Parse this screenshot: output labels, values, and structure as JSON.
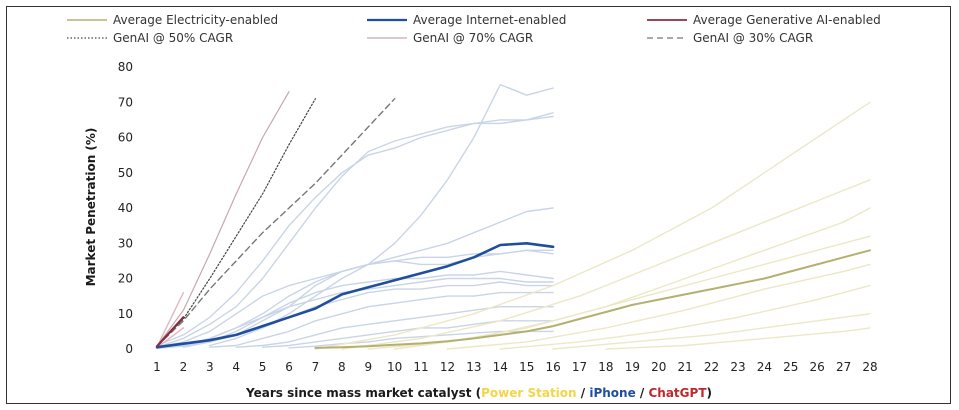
{
  "chart_data": {
    "type": "line",
    "xlabel_parts": [
      {
        "text": "Years since mass market catalyst (",
        "color": "#1a1a1a"
      },
      {
        "text": "Power Station",
        "color": "#f5d547"
      },
      {
        "text": " / ",
        "color": "#1a1a1a"
      },
      {
        "text": "iPhone",
        "color": "#1f4e9e"
      },
      {
        "text": " / ",
        "color": "#1a1a1a"
      },
      {
        "text": "ChatGPT",
        "color": "#c0282d"
      },
      {
        "text": ")",
        "color": "#1a1a1a"
      }
    ],
    "ylabel": "Market Penetration (%)",
    "xlim": [
      1,
      28
    ],
    "ylim": [
      0,
      80
    ],
    "xticks": [
      1,
      2,
      3,
      4,
      5,
      6,
      7,
      8,
      9,
      10,
      11,
      12,
      13,
      14,
      15,
      16,
      17,
      18,
      19,
      20,
      21,
      22,
      23,
      24,
      25,
      26,
      27,
      28
    ],
    "yticks": [
      0,
      10,
      20,
      30,
      40,
      50,
      60,
      70,
      80
    ],
    "grid": false,
    "legend_position": "top",
    "series": [
      {
        "name": "Average Electricity-enabled",
        "color": "#b5b070",
        "width": 2,
        "dash": "",
        "x": [
          7,
          8,
          9,
          10,
          11,
          12,
          13,
          14,
          15,
          16,
          17,
          18,
          19,
          20,
          21,
          22,
          23,
          24,
          25,
          26,
          27,
          28
        ],
        "y": [
          0.3,
          0.5,
          0.8,
          1.2,
          1.6,
          2.2,
          3,
          4,
          5,
          6.5,
          8.5,
          10.5,
          12.5,
          14,
          15.5,
          17,
          18.5,
          20,
          22,
          24,
          26,
          28
        ]
      },
      {
        "name": "Average Internet-enabled",
        "color": "#1f4e9e",
        "width": 2.6,
        "dash": "",
        "x": [
          1,
          2,
          3,
          4,
          5,
          6,
          7,
          8,
          9,
          10,
          11,
          12,
          13,
          14,
          15,
          16
        ],
        "y": [
          0.5,
          1.5,
          2.5,
          4,
          6.5,
          9,
          11.5,
          15.5,
          17.5,
          19.5,
          21.5,
          23.5,
          26,
          29.5,
          30,
          29
        ]
      },
      {
        "name": "Average Generative AI-enabled",
        "color": "#8a2e3e",
        "width": 2.2,
        "dash": "",
        "x": [
          1,
          2
        ],
        "y": [
          0.8,
          9
        ]
      },
      {
        "name": "GenAI @ 50% CAGR",
        "color": "#444444",
        "width": 1.2,
        "dash": "1.5,2",
        "x": [
          1,
          2,
          3,
          4,
          5,
          6,
          7
        ],
        "y": [
          0.8,
          8.5,
          20,
          32,
          44,
          58,
          71
        ]
      },
      {
        "name": "GenAI @ 70% CAGR",
        "color": "#c7a6b0",
        "width": 1.2,
        "dash": "",
        "x": [
          1,
          2,
          3,
          4,
          5,
          6
        ],
        "y": [
          0.8,
          11,
          27,
          44,
          60,
          73
        ]
      },
      {
        "name": "GenAI @ 30% CAGR",
        "color": "#777777",
        "width": 1.4,
        "dash": "6,4",
        "x": [
          1,
          2,
          3,
          4,
          5,
          6,
          7,
          8,
          9,
          10
        ],
        "y": [
          0.8,
          8,
          17,
          25,
          33,
          40,
          47,
          55,
          63,
          71
        ]
      }
    ],
    "background_series": [
      {
        "group": "Internet-enabled",
        "color": "#c9d5e6",
        "x": [
          1,
          2,
          3,
          4,
          5,
          6,
          7,
          8,
          9,
          10,
          11,
          12,
          13,
          14,
          15,
          16
        ],
        "y": [
          1,
          4,
          9,
          16,
          25,
          35,
          43,
          50,
          55,
          57,
          60,
          62,
          64,
          65,
          65,
          66
        ]
      },
      {
        "group": "Internet-enabled",
        "color": "#c9d5e6",
        "x": [
          1,
          2,
          3,
          4,
          5,
          6,
          7,
          8,
          9,
          10,
          11,
          12,
          13,
          14,
          15,
          16
        ],
        "y": [
          0.5,
          3,
          7,
          12,
          20,
          30,
          40,
          49,
          56,
          59,
          61,
          63,
          64,
          64,
          65,
          67
        ]
      },
      {
        "group": "Internet-enabled",
        "color": "#c9d5e6",
        "x": [
          3,
          4,
          5,
          6,
          7,
          8,
          9,
          10,
          11,
          12,
          13,
          14,
          15,
          16
        ],
        "y": [
          1,
          3,
          6,
          10,
          15,
          20,
          24,
          30,
          38,
          48,
          60,
          75,
          72,
          74
        ]
      },
      {
        "group": "Internet-enabled",
        "color": "#c9d5e6",
        "x": [
          1,
          2,
          3,
          4,
          5,
          6,
          7,
          8,
          9,
          10,
          11,
          12,
          13,
          14,
          15,
          16
        ],
        "y": [
          0.5,
          2,
          5,
          10,
          15,
          18,
          20,
          22,
          24,
          26,
          28,
          30,
          33,
          36,
          39,
          40
        ]
      },
      {
        "group": "Internet-enabled",
        "color": "#c9d5e6",
        "x": [
          1,
          2,
          3,
          4,
          5,
          6,
          7,
          8,
          9,
          10,
          11,
          12,
          13,
          14,
          15,
          16
        ],
        "y": [
          0.3,
          1,
          3,
          6,
          10,
          15,
          19,
          22,
          24,
          25,
          26,
          26,
          27,
          27,
          28,
          28
        ]
      },
      {
        "group": "Internet-enabled",
        "color": "#c9d5e6",
        "x": [
          1,
          2,
          3,
          4,
          5,
          6,
          7,
          8,
          9,
          10,
          11,
          12,
          13,
          14,
          15,
          16
        ],
        "y": [
          0.2,
          1,
          2,
          4,
          8,
          12,
          18,
          22,
          24,
          25,
          24,
          24,
          26,
          27,
          28,
          27
        ]
      },
      {
        "group": "Internet-enabled",
        "color": "#c9d5e6",
        "x": [
          2,
          3,
          4,
          5,
          6,
          7,
          8,
          9,
          10,
          11,
          12,
          13,
          14,
          15,
          16
        ],
        "y": [
          0.5,
          2,
          5,
          9,
          13,
          16,
          18,
          19,
          20,
          20,
          21,
          21,
          22,
          21,
          20
        ]
      },
      {
        "group": "Internet-enabled",
        "color": "#c9d5e6",
        "x": [
          1,
          2,
          3,
          4,
          5,
          6,
          7,
          8,
          9,
          10,
          11,
          12,
          13,
          14,
          15,
          16
        ],
        "y": [
          0.2,
          1,
          3,
          6,
          9,
          12,
          14,
          16,
          17,
          18,
          19,
          20,
          20,
          20,
          19,
          19
        ]
      },
      {
        "group": "Internet-enabled",
        "color": "#c9d5e6",
        "x": [
          1,
          2,
          3,
          4,
          5,
          6,
          7,
          8,
          9,
          10,
          11,
          12,
          13,
          14,
          15,
          16
        ],
        "y": [
          0.2,
          0.8,
          2,
          4,
          6,
          9,
          12,
          14,
          16,
          17,
          17,
          18,
          18,
          19,
          18,
          18
        ]
      },
      {
        "group": "Internet-enabled",
        "color": "#c9d5e6",
        "x": [
          3,
          4,
          5,
          6,
          7,
          8,
          9,
          10,
          11,
          12,
          13,
          14,
          15,
          16
        ],
        "y": [
          0.5,
          1,
          3,
          5,
          8,
          10,
          12,
          13,
          14,
          15,
          15,
          16,
          16,
          16
        ]
      },
      {
        "group": "Internet-enabled",
        "color": "#c9d5e6",
        "x": [
          4,
          5,
          6,
          7,
          8,
          9,
          10,
          11,
          12,
          13,
          14,
          15,
          16
        ],
        "y": [
          0.5,
          1,
          2,
          4,
          6,
          7,
          8,
          9,
          10,
          11,
          12,
          12,
          12
        ]
      },
      {
        "group": "Internet-enabled",
        "color": "#c9d5e6",
        "x": [
          5,
          6,
          7,
          8,
          9,
          10,
          11,
          12,
          13,
          14,
          15,
          16
        ],
        "y": [
          0.5,
          1,
          2,
          3,
          4,
          5,
          6,
          6,
          7,
          8,
          8,
          8
        ]
      },
      {
        "group": "Internet-enabled",
        "color": "#c9d5e6",
        "x": [
          6,
          7,
          8,
          9,
          10,
          11,
          12,
          13,
          14,
          15,
          16
        ],
        "y": [
          0.3,
          0.8,
          1.5,
          2,
          3,
          3.5,
          4,
          4.5,
          5,
          5,
          5
        ]
      },
      {
        "group": "Electricity-enabled",
        "color": "#ece8c6",
        "x": [
          7,
          10,
          13,
          16,
          19,
          22,
          25,
          28
        ],
        "y": [
          0,
          4,
          10,
          18,
          28,
          40,
          55,
          70
        ]
      },
      {
        "group": "Electricity-enabled",
        "color": "#ece8c6",
        "x": [
          8,
          11,
          14,
          17,
          20,
          23,
          26,
          28
        ],
        "y": [
          0,
          3,
          8,
          15,
          24,
          33,
          42,
          48
        ]
      },
      {
        "group": "Electricity-enabled",
        "color": "#ece8c6",
        "x": [
          9,
          12,
          15,
          18,
          21,
          24,
          27,
          28
        ],
        "y": [
          0,
          2,
          6,
          12,
          20,
          28,
          36,
          40
        ]
      },
      {
        "group": "Electricity-enabled",
        "color": "#ece8c6",
        "x": [
          10,
          13,
          16,
          19,
          22,
          25,
          28
        ],
        "y": [
          0,
          3,
          8,
          14,
          20,
          26,
          32
        ]
      },
      {
        "group": "Electricity-enabled",
        "color": "#ece8c6",
        "x": [
          12,
          15,
          18,
          21,
          24,
          27,
          28
        ],
        "y": [
          0,
          2,
          6,
          11,
          17,
          22,
          24
        ]
      },
      {
        "group": "Electricity-enabled",
        "color": "#ece8c6",
        "x": [
          14,
          17,
          20,
          23,
          26,
          28
        ],
        "y": [
          0,
          2,
          5,
          9,
          14,
          18
        ]
      },
      {
        "group": "Electricity-enabled",
        "color": "#ece8c6",
        "x": [
          16,
          19,
          22,
          25,
          28
        ],
        "y": [
          0,
          2,
          4,
          7,
          10
        ]
      },
      {
        "group": "Electricity-enabled",
        "color": "#ece8c6",
        "x": [
          18,
          21,
          24,
          27,
          28
        ],
        "y": [
          0,
          1,
          3,
          5,
          6
        ]
      },
      {
        "group": "Generative AI-enabled",
        "color": "#e2b6bf",
        "x": [
          1,
          2
        ],
        "y": [
          0.6,
          16
        ]
      },
      {
        "group": "Generative AI-enabled",
        "color": "#e2b6bf",
        "x": [
          1,
          2
        ],
        "y": [
          0.4,
          6
        ]
      }
    ]
  },
  "colors": {
    "axis_text": "#222222",
    "label_text": "#1a1a1a"
  }
}
